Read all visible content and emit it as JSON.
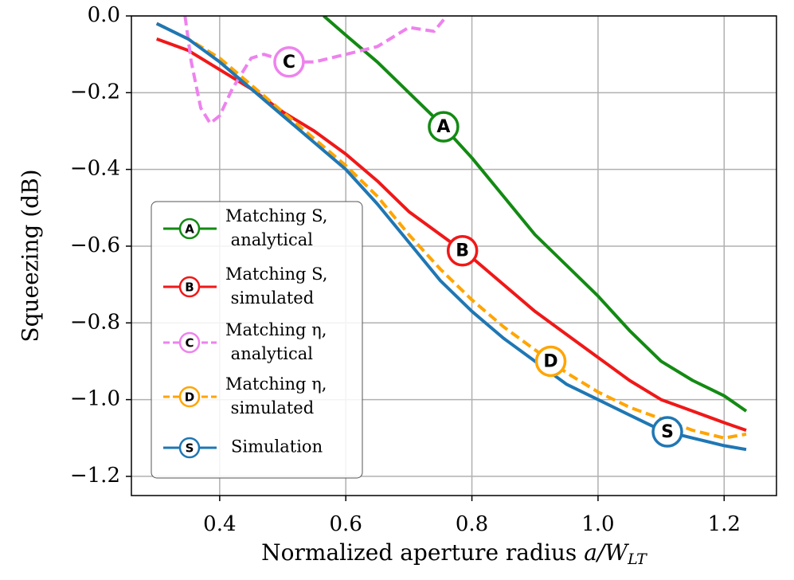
{
  "chart_data": {
    "type": "line",
    "ylabel": "Squeezing (dB)",
    "xlabel": {
      "text": "Normalized aperture radius",
      "math": "a/W",
      "subscript": "LT"
    },
    "xlim": [
      0.26,
      1.283
    ],
    "ylim": [
      -1.25,
      0.0
    ],
    "xticks": [
      0.4,
      0.6,
      0.8,
      {
        "value": 1.0,
        "label": "1.0"
      },
      1.2
    ],
    "yticks": [
      {
        "value": 0.0,
        "label": "0.0"
      },
      {
        "value": -0.2,
        "label": "−0.2"
      },
      {
        "value": -0.4,
        "label": "−0.4"
      },
      {
        "value": -0.6,
        "label": "−0.6"
      },
      {
        "value": -0.8,
        "label": "−0.8"
      },
      {
        "value": -1.0,
        "label": "−1.0"
      },
      {
        "value": -1.2,
        "label": "−1.2"
      }
    ],
    "grid": true,
    "legend": "lower left",
    "series": [
      {
        "name": "Matching S, analytical",
        "label": "A",
        "color": "#138a13",
        "dash": false,
        "x": [
          0.565,
          0.6,
          0.65,
          0.7,
          0.75,
          0.8,
          0.85,
          0.9,
          0.95,
          1.0,
          1.05,
          1.1,
          1.15,
          1.2,
          1.235
        ],
        "values": [
          0.0,
          -0.05,
          -0.12,
          -0.2,
          -0.28,
          -0.37,
          -0.47,
          -0.57,
          -0.65,
          -0.73,
          -0.82,
          -0.9,
          -0.95,
          -0.99,
          -1.03
        ]
      },
      {
        "name": "Matching S, simulated",
        "label": "B",
        "color": "#f01818",
        "dash": false,
        "x": [
          0.3,
          0.35,
          0.4,
          0.45,
          0.5,
          0.55,
          0.6,
          0.65,
          0.7,
          0.75,
          0.8,
          0.85,
          0.9,
          0.95,
          1.0,
          1.05,
          1.1,
          1.15,
          1.2,
          1.235
        ],
        "values": [
          -0.06,
          -0.09,
          -0.14,
          -0.19,
          -0.25,
          -0.3,
          -0.36,
          -0.43,
          -0.51,
          -0.57,
          -0.63,
          -0.7,
          -0.77,
          -0.83,
          -0.89,
          -0.95,
          -1.0,
          -1.03,
          -1.06,
          -1.08
        ]
      },
      {
        "name": "Matching η, analytical",
        "label": "C",
        "color": "#ee82ee",
        "dash": true,
        "x": [
          0.345,
          0.355,
          0.37,
          0.385,
          0.4,
          0.42,
          0.45,
          0.47,
          0.51,
          0.55,
          0.6,
          0.65,
          0.7,
          0.74,
          0.76
        ],
        "values": [
          0.0,
          -0.12,
          -0.24,
          -0.28,
          -0.26,
          -0.19,
          -0.11,
          -0.1,
          -0.12,
          -0.12,
          -0.1,
          -0.08,
          -0.03,
          -0.04,
          0.0
        ]
      },
      {
        "name": "Matching η, simulated",
        "label": "D",
        "color": "#ffa500",
        "dash": true,
        "x": [
          0.3,
          0.35,
          0.4,
          0.45,
          0.5,
          0.55,
          0.6,
          0.65,
          0.7,
          0.75,
          0.8,
          0.85,
          0.9,
          0.95,
          1.0,
          1.05,
          1.1,
          1.15,
          1.2,
          1.235
        ],
        "values": [
          -0.02,
          -0.06,
          -0.11,
          -0.18,
          -0.25,
          -0.32,
          -0.39,
          -0.47,
          -0.57,
          -0.66,
          -0.74,
          -0.81,
          -0.87,
          -0.93,
          -0.98,
          -1.02,
          -1.05,
          -1.08,
          -1.1,
          -1.09
        ]
      },
      {
        "name": "Simulation",
        "label": "S",
        "color": "#1f77b4",
        "dash": false,
        "x": [
          0.3,
          0.35,
          0.4,
          0.45,
          0.5,
          0.55,
          0.6,
          0.65,
          0.7,
          0.75,
          0.8,
          0.85,
          0.9,
          0.95,
          1.0,
          1.05,
          1.1,
          1.15,
          1.2,
          1.235
        ],
        "values": [
          -0.02,
          -0.06,
          -0.12,
          -0.19,
          -0.26,
          -0.33,
          -0.4,
          -0.49,
          -0.59,
          -0.69,
          -0.77,
          -0.84,
          -0.9,
          -0.96,
          -1.0,
          -1.04,
          -1.08,
          -1.1,
          -1.12,
          -1.13
        ]
      }
    ]
  }
}
